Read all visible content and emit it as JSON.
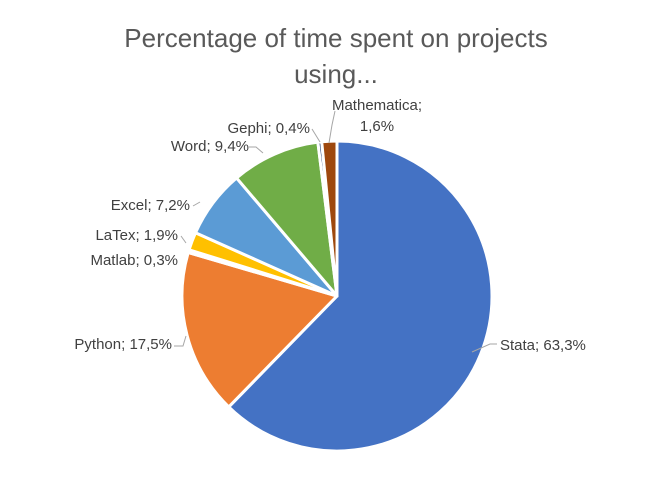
{
  "chart_data": {
    "type": "pie",
    "title_lines": [
      "Percentage of time spent on projects",
      "using..."
    ],
    "slices": [
      {
        "name": "Stata",
        "value": 63.3,
        "label": "Stata; 63,3%",
        "color": "#4472C4"
      },
      {
        "name": "Python",
        "value": 17.5,
        "label": "Python; 17,5%",
        "color": "#ED7D31"
      },
      {
        "name": "Matlab",
        "value": 0.3,
        "label": "Matlab; 0,3%",
        "color": "#A5A5A5"
      },
      {
        "name": "LaTex",
        "value": 1.9,
        "label": "LaTex; 1,9%",
        "color": "#FFC000"
      },
      {
        "name": "Excel",
        "value": 7.2,
        "label": "Excel; 7,2%",
        "color": "#5B9BD5"
      },
      {
        "name": "Word",
        "value": 9.4,
        "label": "Word; 9,4%",
        "color": "#70AD47"
      },
      {
        "name": "Gephi",
        "value": 0.4,
        "label": "Gephi; 0,4%",
        "color": "#264478"
      },
      {
        "name": "Mathematica",
        "value": 1.6,
        "label_lines": [
          "Mathematica;",
          "1,6%"
        ],
        "color": "#9E480E"
      }
    ],
    "slice_border_color": "#ffffff",
    "legend": "none"
  }
}
